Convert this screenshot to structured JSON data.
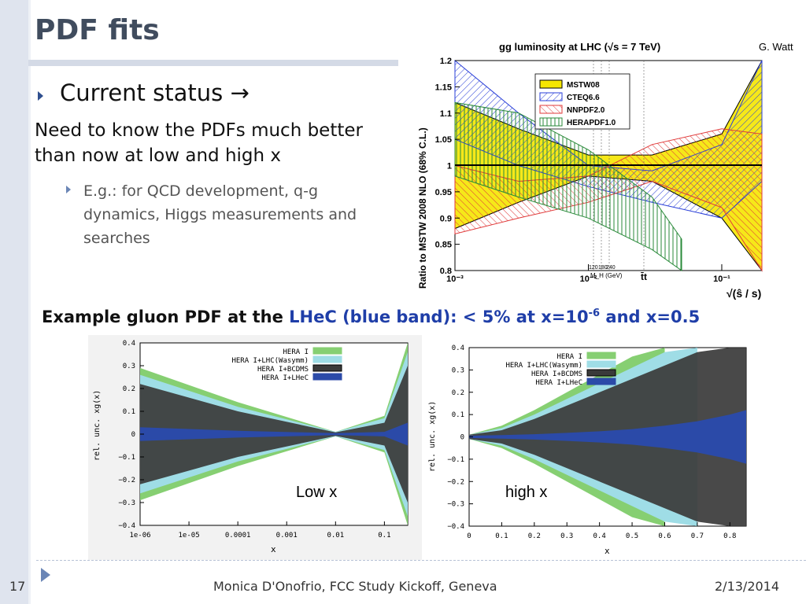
{
  "slide": {
    "title": "PDF fits",
    "bullet1": "Current status →",
    "paragraph": "Need to know the PDFs much better than now at low and high x",
    "sub_bullet": "E.g.: for QCD development, q-g dynamics, Higgs measurements and searches",
    "caption": {
      "part1": "Example gluon PDF at the ",
      "part2": "LHeC (blue band): < 5% at x=10",
      "sup": "-6",
      "part3": " and x=0.5"
    },
    "footer": {
      "page_number": "17",
      "text": "Monica D'Onofrio, FCC Study Kickoff, Geneva",
      "date": "2/13/2014"
    },
    "labels": {
      "low_x": "Low x",
      "high_x": "high x"
    }
  },
  "chart_data": [
    {
      "type": "area",
      "title": "gg luminosity at LHC (√s = 7 TeV)",
      "author": "G. Watt",
      "ylabel": "Ratio to MSTW 2008 NLO (68% C.L.)",
      "xlabel": "√(ŝ / s)",
      "xscale": "log",
      "ylim": [
        0.8,
        1.2
      ],
      "y_ticks": [
        "0.8",
        "0.85",
        "0.9",
        "0.95",
        "1",
        "1.05",
        "1.1",
        "1.15",
        "1.2"
      ],
      "x_ticks": [
        "10⁻³",
        "10⁻²",
        "10⁻¹"
      ],
      "x_markers": [
        "120",
        "180",
        "240",
        "M_H (GeV)",
        "t̄t"
      ],
      "legend_position": "top-center",
      "series": [
        {
          "name": "MSTW08",
          "color": "#f5e600",
          "x": [
            0.001,
            0.003,
            0.01,
            0.03,
            0.1,
            0.2
          ],
          "upper": [
            1.12,
            1.07,
            1.02,
            1.02,
            1.06,
            1.2
          ],
          "lower": [
            0.88,
            0.93,
            0.98,
            0.97,
            0.9,
            0.8
          ]
        },
        {
          "name": "CTEQ6.6",
          "color": "#2a3fd8",
          "x": [
            0.001,
            0.003,
            0.01,
            0.03,
            0.1,
            0.2
          ],
          "upper": [
            1.2,
            1.1,
            1.0,
            0.99,
            1.04,
            1.2
          ],
          "lower": [
            1.05,
            1.0,
            0.96,
            0.93,
            0.9,
            0.97
          ]
        },
        {
          "name": "NNPDF2.0",
          "color": "#e03a3a",
          "x": [
            0.001,
            0.003,
            0.01,
            0.03,
            0.1,
            0.2
          ],
          "upper": [
            1.0,
            0.97,
            0.98,
            1.04,
            1.07,
            1.06
          ],
          "lower": [
            0.87,
            0.9,
            0.93,
            0.97,
            0.92,
            0.8
          ]
        },
        {
          "name": "HERAPDF1.0",
          "color": "#2a8a3a",
          "x": [
            0.001,
            0.003,
            0.01,
            0.03,
            0.05
          ],
          "upper": [
            1.12,
            1.1,
            1.03,
            0.94,
            0.86
          ],
          "lower": [
            0.98,
            0.94,
            0.9,
            0.84,
            0.8
          ]
        }
      ]
    },
    {
      "type": "area",
      "xlabel": "x",
      "ylabel": "rel. unc. xg(x)",
      "xscale": "log",
      "x_ticks": [
        "1e-06",
        "1e-05",
        "0.0001",
        "0.001",
        "0.01",
        "0.1"
      ],
      "y_ticks": [
        "0.4",
        "0.3",
        "0.2",
        "0.1",
        "0",
        "−0.1",
        "−0.2",
        "−0.3",
        "−0.4"
      ],
      "ylim": [
        -0.4,
        0.4
      ],
      "legend_position": "top-center",
      "series": [
        {
          "name": "HERA I",
          "color": "#86cf72",
          "x": [
            1e-06,
            0.0001,
            0.01,
            0.1,
            0.3
          ],
          "half_width": [
            0.29,
            0.14,
            0.01,
            0.08,
            0.4
          ]
        },
        {
          "name": "HERA I+LHC(Wasymm)",
          "color": "#9fdde6",
          "x": [
            1e-06,
            0.0001,
            0.01,
            0.1,
            0.3
          ],
          "half_width": [
            0.26,
            0.12,
            0.01,
            0.07,
            0.36
          ]
        },
        {
          "name": "HERA I+BCDMS",
          "color": "#3a3a3a",
          "x": [
            1e-06,
            0.0001,
            0.01,
            0.1,
            0.3
          ],
          "half_width": [
            0.22,
            0.1,
            0.008,
            0.05,
            0.3
          ]
        },
        {
          "name": "HERA I+LHeC",
          "color": "#2b4aa8",
          "x": [
            1e-06,
            0.0001,
            0.01,
            0.1,
            0.3
          ],
          "half_width": [
            0.03,
            0.015,
            0.004,
            0.01,
            0.05
          ]
        }
      ]
    },
    {
      "type": "area",
      "xlabel": "x",
      "ylabel": "rel. unc. xg(x)",
      "x_ticks": [
        "0",
        "0.1",
        "0.2",
        "0.3",
        "0.4",
        "0.5",
        "0.6",
        "0.7",
        "0.8"
      ],
      "y_ticks": [
        "0.4",
        "0.3",
        "0.2",
        "0.1",
        "0",
        "−0.1",
        "−0.2",
        "−0.3",
        "−0.4"
      ],
      "xlim": [
        0,
        0.85
      ],
      "ylim": [
        -0.4,
        0.4
      ],
      "legend_position": "top-center",
      "series": [
        {
          "name": "HERA I",
          "color": "#86cf72",
          "x": [
            0,
            0.1,
            0.2,
            0.3,
            0.4,
            0.5,
            0.6
          ],
          "half_width": [
            0.01,
            0.05,
            0.12,
            0.2,
            0.28,
            0.36,
            0.45
          ]
        },
        {
          "name": "HERA I+LHC(Wasymm)",
          "color": "#9fdde6",
          "x": [
            0,
            0.1,
            0.2,
            0.3,
            0.4,
            0.5,
            0.6,
            0.7
          ],
          "half_width": [
            0.01,
            0.04,
            0.1,
            0.17,
            0.24,
            0.31,
            0.38,
            0.45
          ]
        },
        {
          "name": "HERA I+BCDMS",
          "color": "#3a3a3a",
          "x": [
            0,
            0.1,
            0.2,
            0.3,
            0.4,
            0.5,
            0.6,
            0.7,
            0.8,
            0.85
          ],
          "half_width": [
            0.01,
            0.03,
            0.08,
            0.14,
            0.2,
            0.26,
            0.32,
            0.38,
            0.42,
            0.45
          ]
        },
        {
          "name": "HERA I+LHeC",
          "color": "#2b4aa8",
          "x": [
            0,
            0.1,
            0.2,
            0.3,
            0.4,
            0.5,
            0.6,
            0.7,
            0.8,
            0.85
          ],
          "half_width": [
            0.005,
            0.008,
            0.012,
            0.018,
            0.025,
            0.035,
            0.05,
            0.07,
            0.1,
            0.12
          ]
        }
      ]
    }
  ]
}
